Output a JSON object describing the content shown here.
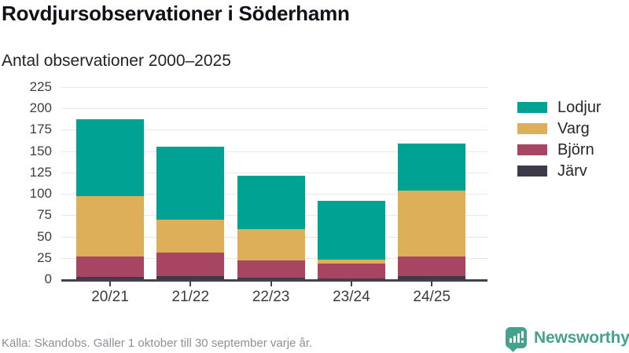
{
  "header": {
    "title": "Rovdjursobservationer i Söderhamn",
    "subtitle": "Antal observationer 2000–2025"
  },
  "chart_data": {
    "type": "bar",
    "stacked": true,
    "title": "Rovdjursobservationer i Söderhamn",
    "subtitle": "Antal observationer 2000–2025",
    "xlabel": "",
    "ylabel": "",
    "categories": [
      "20/21",
      "21/22",
      "22/23",
      "23/24",
      "24/25"
    ],
    "series": [
      {
        "name": "Järv",
        "color": "#3e3a49",
        "values": [
          3,
          4,
          2,
          1,
          4
        ]
      },
      {
        "name": "Björn",
        "color": "#a84563",
        "values": [
          24,
          27,
          20,
          17,
          23
        ]
      },
      {
        "name": "Varg",
        "color": "#dcaf58",
        "values": [
          70,
          39,
          37,
          5,
          77
        ]
      },
      {
        "name": "Lodjur",
        "color": "#00a294",
        "values": [
          90,
          85,
          62,
          69,
          55
        ]
      }
    ],
    "totals": [
      187,
      155,
      121,
      92,
      159
    ],
    "ylim": [
      0,
      225
    ],
    "yticks": [
      0,
      25,
      50,
      75,
      100,
      125,
      150,
      175,
      200,
      225
    ],
    "grid": true,
    "legend_position": "right",
    "legend_order_top_to_bottom": [
      "Lodjur",
      "Varg",
      "Björn",
      "Järv"
    ]
  },
  "legend": {
    "items": [
      {
        "label": "Lodjur",
        "color": "#00a294"
      },
      {
        "label": "Varg",
        "color": "#dcaf58"
      },
      {
        "label": "Björn",
        "color": "#a84563"
      },
      {
        "label": "Järv",
        "color": "#3e3a49"
      }
    ]
  },
  "footer": {
    "source": "Källa: Skandobs. Gäller 1 oktober till 30 september varje år."
  },
  "branding": {
    "name": "Newsworthy",
    "color": "#46a28e",
    "icon": "newsworthy-chart-bubble-icon"
  }
}
